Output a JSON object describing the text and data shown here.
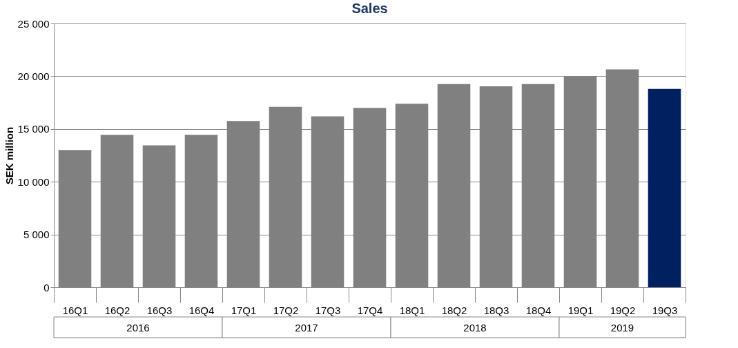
{
  "chart_data": {
    "type": "bar",
    "title": "Sales",
    "ylabel": "SEK million",
    "categories": [
      "16Q1",
      "16Q2",
      "16Q3",
      "16Q4",
      "17Q1",
      "17Q2",
      "17Q3",
      "17Q4",
      "18Q1",
      "18Q2",
      "18Q3",
      "18Q4",
      "19Q1",
      "19Q2",
      "19Q3"
    ],
    "values": [
      13000,
      14450,
      13450,
      14450,
      15750,
      17100,
      16200,
      17000,
      17400,
      19250,
      19050,
      19250,
      20000,
      20650,
      18800
    ],
    "colors": [
      "#808080",
      "#808080",
      "#808080",
      "#808080",
      "#808080",
      "#808080",
      "#808080",
      "#808080",
      "#808080",
      "#808080",
      "#808080",
      "#808080",
      "#808080",
      "#808080",
      "#002060"
    ],
    "ylim": [
      0,
      25000
    ],
    "yticks": [
      0,
      {
        "value": 5000,
        "label": "5 000"
      },
      {
        "value": 10000,
        "label": "10 000"
      },
      {
        "value": 15000,
        "label": "15 000"
      },
      {
        "value": 20000,
        "label": "20 000"
      },
      {
        "value": 25000,
        "label": "25 000"
      }
    ],
    "grid": "y",
    "annotations": [
      "2016",
      "2017",
      "2018",
      "2019"
    ]
  }
}
